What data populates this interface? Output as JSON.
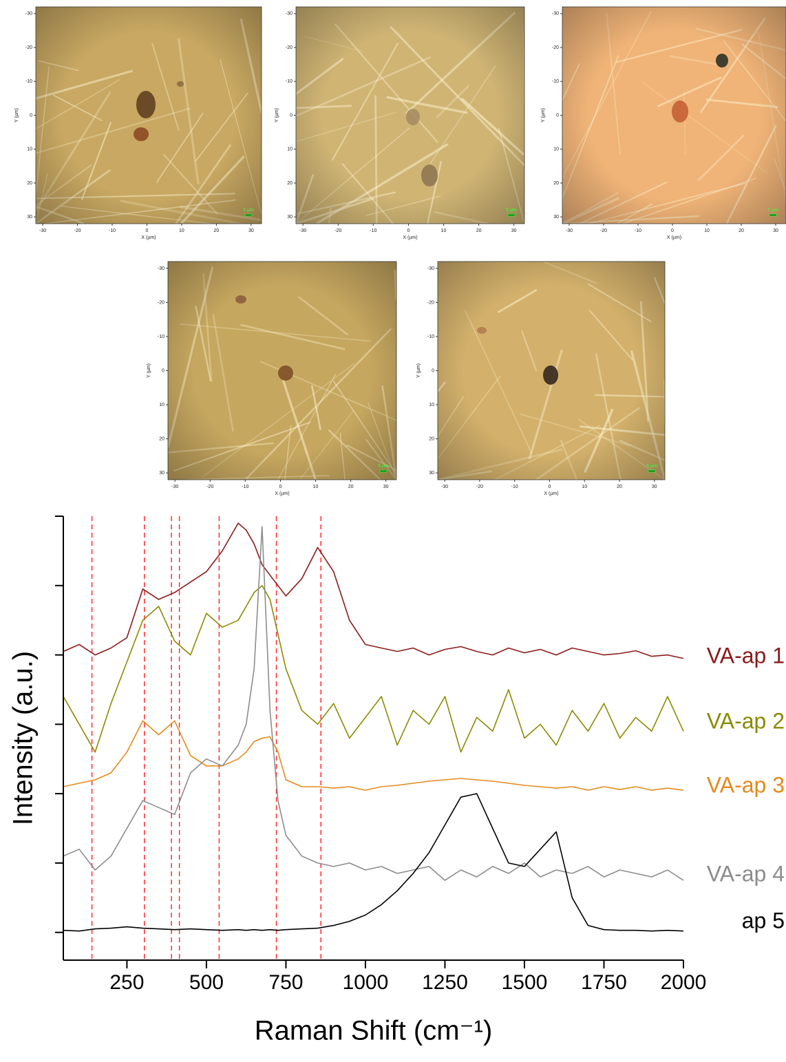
{
  "chart_data": [
    {
      "type": "image",
      "xlabel": "X (µm)",
      "ylabel": "Y (µm)",
      "scale_bar": "5 µm",
      "tint": "#c8a862",
      "xlim": [
        -32,
        33
      ],
      "ylim": [
        -32,
        32
      ],
      "xticks": [
        -30,
        -20,
        -10,
        0,
        10,
        20,
        30
      ],
      "yticks": [
        -30,
        -20,
        -10,
        0,
        10,
        20,
        30
      ]
    },
    {
      "type": "image",
      "xlabel": "X (µm)",
      "ylabel": "Y (µm)",
      "scale_bar": "5 µm",
      "tint": "#cfb474",
      "xlim": [
        -32,
        33
      ],
      "ylim": [
        -32,
        32
      ],
      "xticks": [
        -30,
        -20,
        -10,
        0,
        10,
        20,
        30
      ],
      "yticks": [
        -30,
        -20,
        -10,
        0,
        10,
        20,
        30
      ]
    },
    {
      "type": "image",
      "xlabel": "X (µm)",
      "ylabel": "Y (µm)",
      "scale_bar": "5 µm",
      "tint": "#f0b478",
      "xlim": [
        -32,
        33
      ],
      "ylim": [
        -32,
        32
      ],
      "xticks": [
        -30,
        -20,
        -10,
        0,
        10,
        20,
        30
      ],
      "yticks": [
        -30,
        -20,
        -10,
        0,
        10,
        20,
        30
      ]
    },
    {
      "type": "image",
      "xlabel": "X (µm)",
      "ylabel": "Y (µm)",
      "scale_bar": "5 µm",
      "tint": "#c6a760",
      "xlim": [
        -32,
        33
      ],
      "ylim": [
        -32,
        32
      ],
      "xticks": [
        -30,
        -20,
        -10,
        0,
        10,
        20,
        30
      ],
      "yticks": [
        -30,
        -20,
        -10,
        0,
        10,
        20,
        30
      ]
    },
    {
      "type": "image",
      "xlabel": "X (µm)",
      "ylabel": "Y (µm)",
      "scale_bar": "5 µm",
      "tint": "#d3b16c",
      "xlim": [
        -32,
        33
      ],
      "ylim": [
        -32,
        32
      ],
      "xticks": [
        -30,
        -20,
        -10,
        0,
        10,
        20,
        30
      ],
      "yticks": [
        -30,
        -20,
        -10,
        0,
        10,
        20,
        30
      ]
    },
    {
      "type": "line",
      "xlabel": "Raman Shift (cm⁻¹)",
      "ylabel": "Intensity (a.u.)",
      "x": [
        50,
        100,
        150,
        200,
        250,
        300,
        350,
        400,
        450,
        500,
        550,
        600,
        625,
        650,
        675,
        700,
        725,
        750,
        800,
        850,
        900,
        950,
        1000,
        1050,
        1100,
        1150,
        1200,
        1250,
        1300,
        1350,
        1400,
        1450,
        1500,
        1550,
        1600,
        1650,
        1700,
        1750,
        1800,
        1850,
        1900,
        1950,
        2000
      ],
      "series": [
        {
          "name": "VA-ap 1",
          "color": "#8b1a1a",
          "values": [
            4.05,
            4.15,
            4.0,
            4.1,
            4.25,
            4.95,
            4.8,
            4.9,
            5.05,
            5.2,
            5.5,
            5.9,
            5.8,
            5.6,
            5.3,
            5.15,
            5.0,
            4.85,
            5.1,
            5.55,
            5.2,
            4.5,
            4.15,
            4.1,
            4.05,
            4.1,
            4.0,
            4.08,
            4.12,
            4.05,
            4.0,
            4.1,
            4.03,
            4.08,
            4.0,
            4.1,
            4.05,
            4.0,
            4.02,
            4.06,
            3.98,
            4.0,
            3.95
          ]
        },
        {
          "name": "VA-ap 2",
          "color": "#8a8a00",
          "values": [
            3.4,
            3.0,
            2.6,
            3.3,
            3.9,
            4.5,
            4.7,
            4.2,
            4.0,
            4.6,
            4.4,
            4.5,
            4.7,
            4.9,
            5.0,
            4.8,
            4.3,
            3.8,
            3.2,
            3.0,
            3.3,
            2.8,
            3.1,
            3.4,
            2.7,
            3.2,
            3.0,
            3.4,
            2.6,
            3.1,
            2.9,
            3.5,
            2.8,
            3.0,
            2.7,
            3.2,
            2.9,
            3.3,
            2.8,
            3.1,
            2.9,
            3.4,
            2.9
          ]
        },
        {
          "name": "VA-ap 3",
          "color": "#e38a1c",
          "values": [
            2.1,
            2.15,
            2.2,
            2.3,
            2.6,
            3.05,
            2.85,
            3.05,
            2.55,
            2.4,
            2.4,
            2.5,
            2.6,
            2.75,
            2.8,
            2.82,
            2.6,
            2.2,
            2.1,
            2.1,
            2.08,
            2.1,
            2.05,
            2.1,
            2.12,
            2.15,
            2.18,
            2.2,
            2.22,
            2.2,
            2.18,
            2.15,
            2.12,
            2.1,
            2.08,
            2.1,
            2.05,
            2.1,
            2.06,
            2.1,
            2.05,
            2.08,
            2.05
          ]
        },
        {
          "name": "VA-ap 4",
          "color": "#8c8c8c",
          "values": [
            1.1,
            1.2,
            0.9,
            1.1,
            1.5,
            1.9,
            1.8,
            1.7,
            2.3,
            2.5,
            2.4,
            2.7,
            3.0,
            3.8,
            5.85,
            3.2,
            1.9,
            1.4,
            1.1,
            1.0,
            0.95,
            1.0,
            0.9,
            0.95,
            0.85,
            0.9,
            0.95,
            0.75,
            0.9,
            0.8,
            0.95,
            0.85,
            1.0,
            0.8,
            0.9,
            0.85,
            0.95,
            0.8,
            0.9,
            0.85,
            0.8,
            0.9,
            0.75
          ]
        },
        {
          "name": "ap 5",
          "color": "#000000",
          "values": [
            0.03,
            0.02,
            0.05,
            0.06,
            0.08,
            0.06,
            0.05,
            0.04,
            0.05,
            0.04,
            0.03,
            0.04,
            0.03,
            0.04,
            0.03,
            0.04,
            0.03,
            0.04,
            0.05,
            0.06,
            0.1,
            0.16,
            0.25,
            0.4,
            0.6,
            0.85,
            1.15,
            1.55,
            1.95,
            2.0,
            1.5,
            1.0,
            0.95,
            1.2,
            1.45,
            0.5,
            0.1,
            0.04,
            0.03,
            0.03,
            0.02,
            0.03,
            0.02
          ]
        }
      ],
      "reference_lines": [
        140,
        305,
        390,
        415,
        540,
        720,
        860
      ],
      "reference_color": "#ff2a2a",
      "xlim": [
        50,
        2000
      ],
      "ylim": [
        -0.4,
        6
      ],
      "xticks": [
        250,
        500,
        750,
        1000,
        1250,
        1500,
        1750,
        2000
      ],
      "yticks": [
        0,
        1,
        2,
        3,
        4,
        5,
        6
      ]
    }
  ]
}
